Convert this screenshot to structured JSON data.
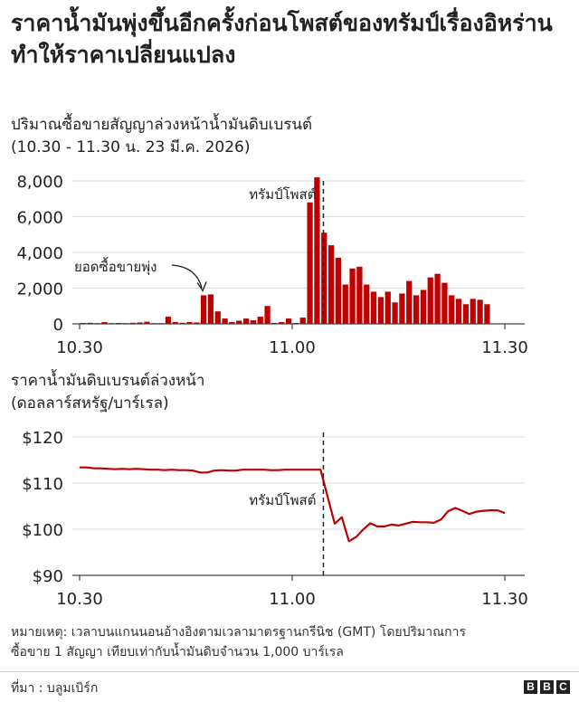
{
  "title": "ราคาน้ำมันพุ่งขึ้นอีกครั้งก่อนโพสต์ของทรัมป์เรื่องอิหร่านทำให้ราคาเปลี่ยนแปลง",
  "accent_color": "#c00000",
  "chart_data": [
    {
      "type": "bar",
      "title": "ปริมาณซื้อขายสัญญาล่วงหน้าน้ำมันดิบเบรนต์",
      "subtitle": "(10.30 - 11.30 น. 23 มี.ค. 2026)",
      "x_tick_labels": [
        "10.30",
        "11.00",
        "11.30"
      ],
      "x_ticks_minutes": [
        0,
        30,
        60
      ],
      "y_tick_labels": [
        "8,000",
        "6,000",
        "4,000",
        "2,000",
        "0"
      ],
      "y_ticks": [
        8000,
        6000,
        4000,
        2000,
        0
      ],
      "ylim": [
        0,
        8000
      ],
      "grid": true,
      "color": "#c00000",
      "minutes": [
        0,
        1,
        2,
        3,
        4,
        5,
        6,
        7,
        8,
        9,
        10,
        11,
        12,
        13,
        14,
        15,
        16,
        17,
        18,
        19,
        20,
        21,
        22,
        23,
        24,
        25,
        26,
        27,
        28,
        29,
        30,
        31,
        32,
        33,
        34,
        35,
        36,
        37,
        38,
        39,
        40,
        41,
        42,
        43,
        44,
        45,
        46,
        47,
        48,
        49,
        50,
        51,
        52,
        53,
        54,
        55,
        56,
        57,
        58,
        59,
        60
      ],
      "values": [
        50,
        60,
        40,
        100,
        40,
        50,
        40,
        60,
        80,
        120,
        40,
        40,
        400,
        100,
        60,
        100,
        80,
        1600,
        1650,
        700,
        300,
        100,
        180,
        300,
        200,
        400,
        1000,
        50,
        100,
        300,
        50,
        350,
        6800,
        8200,
        5100,
        4400,
        3700,
        2200,
        3100,
        3200,
        2200,
        1800,
        1500,
        1800,
        1200,
        1700,
        2400,
        1600,
        1900,
        2600,
        2800,
        2300,
        1600,
        1400,
        1100,
        1400,
        1350,
        1100,
        0,
        0,
        0
      ],
      "annotations": [
        {
          "text": "ยอดซื้อขายพุ่ง",
          "minute": 17,
          "value": 1700
        },
        {
          "text": "ทรัมป์โพสต์",
          "minute": 34,
          "type": "vline"
        }
      ]
    },
    {
      "type": "line",
      "title": "ราคาน้ำมันดิบเบรนต์ล่วงหน้า",
      "subtitle": "(ดอลลาร์สหรัฐ/บาร์เรล)",
      "x_tick_labels": [
        "10.30",
        "11.00",
        "11.30"
      ],
      "x_ticks_minutes": [
        0,
        30,
        60
      ],
      "y_tick_labels": [
        "$120",
        "$110",
        "$100",
        "$90"
      ],
      "y_ticks": [
        120,
        110,
        100,
        90
      ],
      "ylim": [
        90,
        120
      ],
      "grid": true,
      "color": "#c00000",
      "minutes": [
        0,
        1,
        2,
        3,
        4,
        5,
        6,
        7,
        8,
        9,
        10,
        11,
        12,
        13,
        14,
        15,
        16,
        17,
        18,
        19,
        20,
        21,
        22,
        23,
        24,
        25,
        26,
        27,
        28,
        29,
        30,
        31,
        32,
        33,
        34,
        35,
        36,
        37,
        38,
        39,
        40,
        41,
        42,
        43,
        44,
        45,
        46,
        47,
        48,
        49,
        50,
        51,
        52,
        53,
        54,
        55,
        56,
        57,
        58,
        59,
        60
      ],
      "values": [
        113.4,
        113.4,
        113.2,
        113.2,
        113.1,
        113.0,
        113.1,
        113.0,
        113.1,
        113.0,
        112.9,
        112.9,
        112.8,
        112.9,
        112.8,
        112.8,
        112.7,
        112.3,
        112.3,
        112.7,
        112.8,
        112.7,
        112.7,
        112.9,
        112.9,
        112.9,
        112.9,
        112.8,
        112.8,
        112.9,
        112.9,
        112.9,
        112.9,
        112.9,
        112.9,
        107.0,
        101.2,
        102.6,
        97.4,
        98.3,
        99.9,
        101.3,
        100.6,
        100.6,
        101.0,
        100.8,
        101.2,
        101.6,
        101.5,
        101.5,
        101.4,
        102.1,
        103.9,
        104.6,
        104.0,
        103.3,
        103.8,
        104.0,
        104.1,
        104.1,
        103.5
      ],
      "annotations": [
        {
          "text": "ทรัมป์โพสต์",
          "minute": 34,
          "type": "vline"
        }
      ]
    }
  ],
  "note": "หมายเหตุ: เวลาบนแกนนอนอ้างอิงตามเวลามาตรฐานกรีนิช (GMT) โดยปริมาณการซื้อขาย 1 สัญญา เทียบเท่ากับน้ำมันดิบจำนวน 1,000 บาร์เรล",
  "source": "ที่มา : บลูมเบิร์ก",
  "logo_letters": [
    "B",
    "B",
    "C"
  ]
}
